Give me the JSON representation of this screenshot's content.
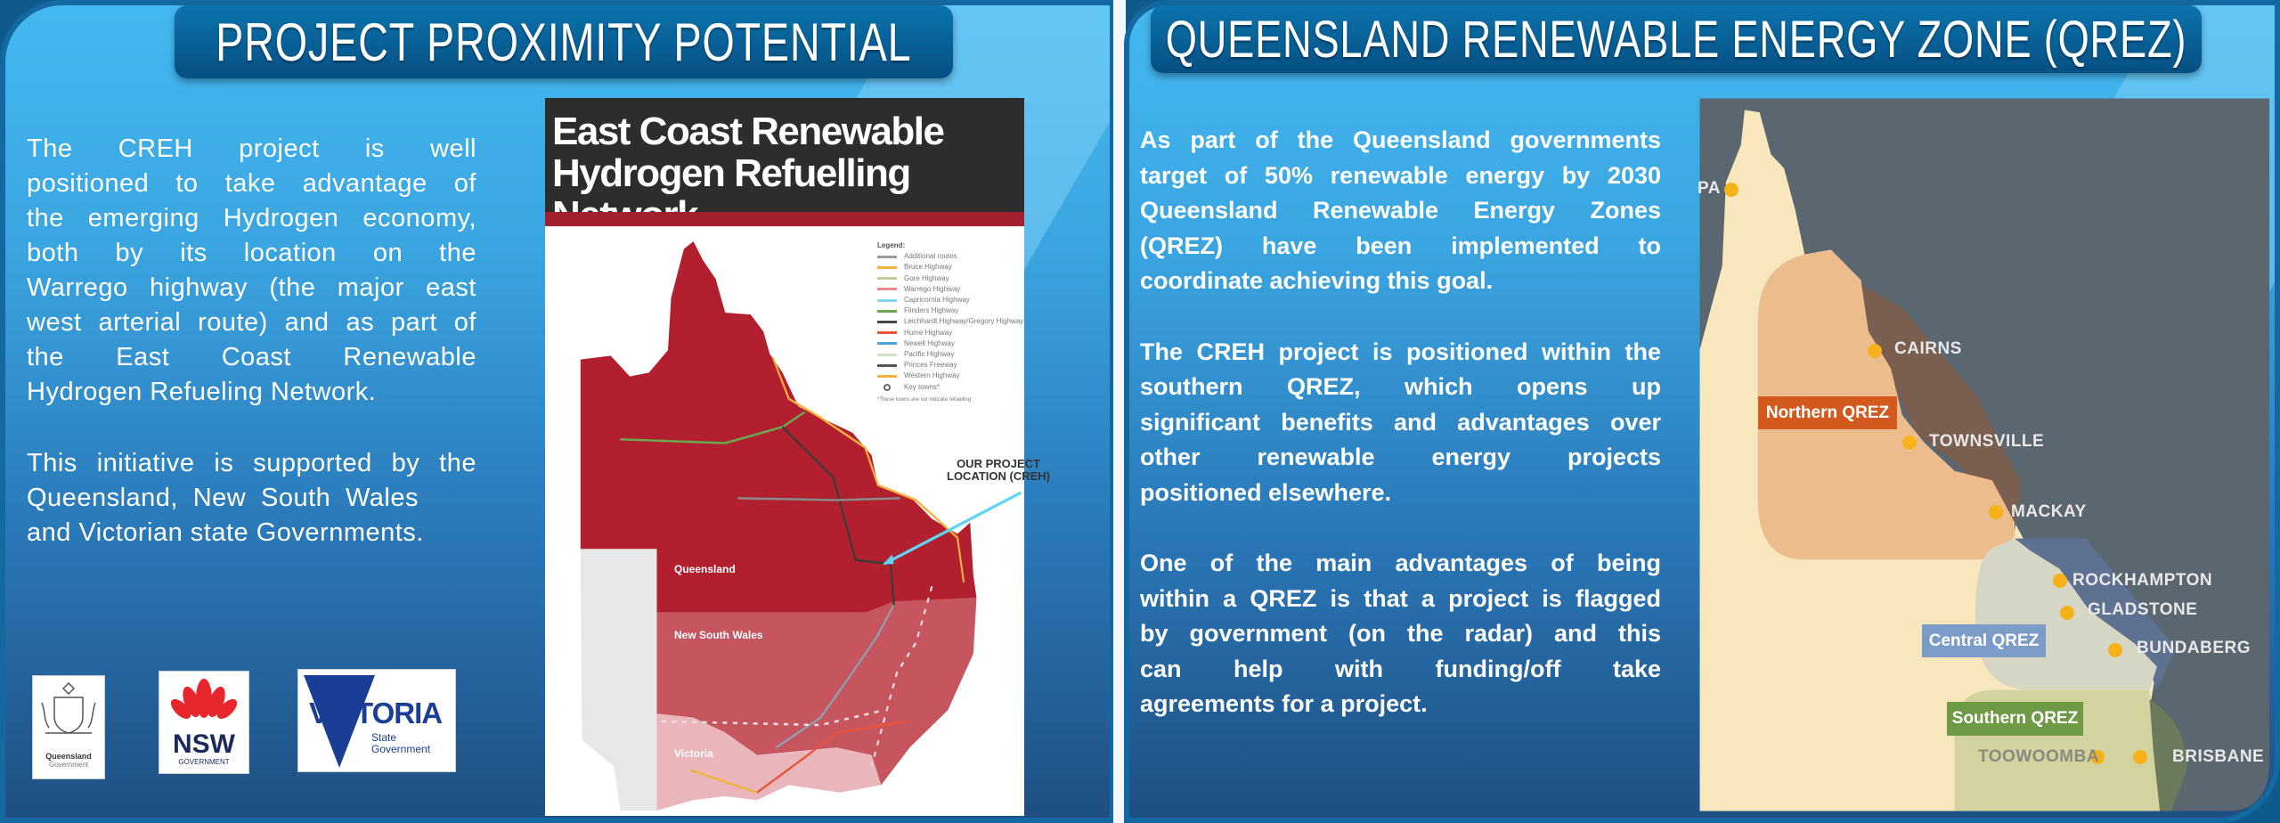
{
  "left": {
    "header": "PROJECT PROXIMITY POTENTIAL",
    "paragraphs": [
      [
        "The CREH project is well",
        "positioned to take advantage of",
        "the emerging Hydrogen economy,",
        "both by its location on the",
        "Warrego highway (the major east",
        "west arterial route) and as part of",
        "the East Coast Renewable",
        "Hydrogen Refueling Network."
      ],
      [
        "This initiative is supported by the",
        "Queensland, New South Wales",
        "and Victorian state Governments."
      ]
    ],
    "logos": {
      "qld": {
        "line1": "Queensland",
        "line2": "Government"
      },
      "nsw": {
        "line1": "NSW",
        "line2": "GOVERNMENT"
      },
      "vic": {
        "line1": "VICTORIA",
        "line2": "State",
        "line3": "Government"
      }
    },
    "map": {
      "title_line1": "East Coast Renewable",
      "title_line2": "Hydrogen Refuelling Network",
      "legend_title": "Legend:",
      "legend": [
        {
          "label": "Additional routes",
          "color": "#9a9a9a"
        },
        {
          "label": "Bruce Highway",
          "color": "#f4b23c"
        },
        {
          "label": "Gore Highway",
          "color": "#c8c89a"
        },
        {
          "label": "Warrego Highway",
          "color": "#f08a8a"
        },
        {
          "label": "Capricornia Highway",
          "color": "#7fd8ee"
        },
        {
          "label": "Flinders Highway",
          "color": "#6aa84f"
        },
        {
          "label": "Leichhardt Highway/Gregory Highway",
          "color": "#444444"
        },
        {
          "label": "Hume Highway",
          "color": "#e8553a"
        },
        {
          "label": "Newell Highway",
          "color": "#4aa8d8"
        },
        {
          "label": "Pacific Highway",
          "color": "#cfe3c8"
        },
        {
          "label": "Princes Freeway",
          "color": "#555555"
        },
        {
          "label": "Western Highway",
          "color": "#f4b23c"
        },
        {
          "label": "Key towns*",
          "color": "#666666"
        }
      ],
      "legend_note": "*These towns are not indicate refuelling",
      "states": [
        "Queensland",
        "New South Wales",
        "Victoria"
      ],
      "callout": [
        "OUR PROJECT",
        "LOCATION (CREH)"
      ],
      "colors": {
        "qld": "#b22030",
        "nsw": "#c65560",
        "vic": "#e8b6bb",
        "other": "#e6e7e6",
        "title_bg": "#2d2d2d",
        "title_bar": "#a3202e",
        "arrow": "#5fd4f4"
      }
    }
  },
  "right": {
    "header": "QUEENSLAND RENEWABLE ENERGY ZONE (QREZ)",
    "paragraphs": [
      [
        "As part of the Queensland governments",
        "target of 50% renewable energy by 2030",
        "Queensland Renewable Energy Zones",
        "(QREZ) have been implemented to",
        "coordinate achieving this goal."
      ],
      [
        "The CREH project is positioned within the",
        "southern QREZ, which opens up",
        "significant benefits and advantages over",
        "other renewable energy projects",
        "positioned elsewhere."
      ],
      [
        "One of the main advantages of being",
        "within a QREZ is that a project is flagged",
        "by government (on the radar) and this",
        "can help with funding/off take",
        "agreements for a project."
      ]
    ],
    "map": {
      "towns": [
        "PA",
        "CAIRNS",
        "TOWNSVILLE",
        "MACKAY",
        "ROCKHAMPTON",
        "GLADSTONE",
        "BUNDABERG",
        "TOOWOOMBA",
        "BRISBANE"
      ],
      "zones": {
        "northern": "Northern QREZ",
        "central": "Central QREZ",
        "southern": "Southern QREZ"
      },
      "colors": {
        "sea": "#5a6670",
        "land": "#f8e6bd",
        "northern": "#d35a1e",
        "central": "#7c9cc8",
        "southern": "#6e9a45",
        "town": "#f7b21a"
      }
    }
  }
}
